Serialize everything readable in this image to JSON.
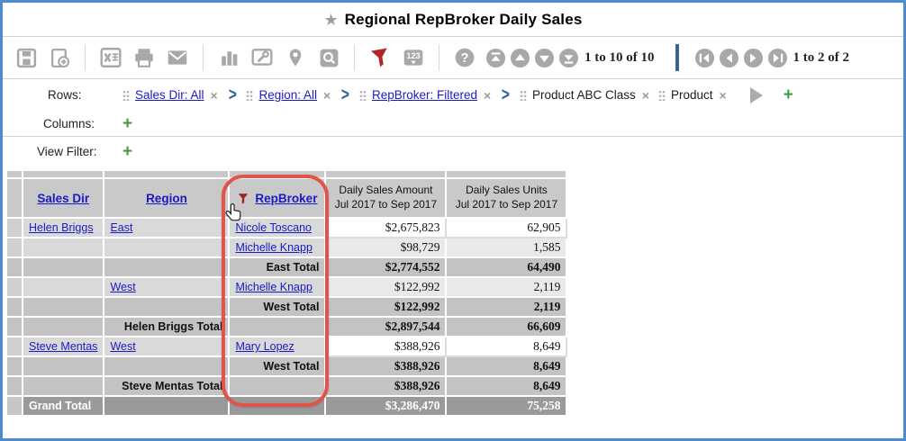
{
  "title": {
    "star_icon": "★",
    "text": "Regional RepBroker Daily Sales"
  },
  "toolbar": {
    "icons": [
      "save",
      "save-as",
      "export-excel",
      "print",
      "email",
      "chart",
      "design",
      "map-pin",
      "preview",
      "filter",
      "number-format",
      "help"
    ],
    "row_pager": {
      "buttons": [
        "scroll-top",
        "scroll-up",
        "scroll-down",
        "scroll-bottom"
      ],
      "label": "1 to 10 of 10"
    },
    "page_pager": {
      "buttons": [
        "first-page",
        "previous-page",
        "next-page",
        "last-page"
      ],
      "label": "1 to 2 of 2"
    }
  },
  "shelves": {
    "rows": {
      "label": "Rows:",
      "chips": [
        {
          "text": "Sales Dir: All",
          "link": true,
          "chevron_after": true
        },
        {
          "text": "Region: All",
          "link": true,
          "chevron_after": true
        },
        {
          "text": "RepBroker: Filtered",
          "link": true,
          "chevron_after": true
        },
        {
          "text": "Product ABC Class",
          "link": false,
          "chevron_after": false
        },
        {
          "text": "Product",
          "link": false,
          "chevron_after": false
        }
      ]
    },
    "columns": {
      "label": "Columns:"
    },
    "view_filter": {
      "label": "View Filter:"
    }
  },
  "table": {
    "headers": [
      {
        "label": "Sales Dir",
        "link": true
      },
      {
        "label": "Region",
        "link": true
      },
      {
        "label": "RepBroker",
        "link": true,
        "filter_icon": true
      },
      {
        "label": "Daily Sales Amount",
        "sub": "Jul 2017 to Sep 2017"
      },
      {
        "label": "Daily Sales Units",
        "sub": "Jul 2017 to Sep 2017"
      }
    ],
    "rows": [
      {
        "type": "data",
        "shade": false,
        "cells": [
          "Helen Briggs",
          "East",
          "Nicole Toscano",
          "$2,675,823",
          "62,905"
        ]
      },
      {
        "type": "data",
        "shade": true,
        "cells": [
          "",
          "",
          "Michelle Knapp",
          "$98,729",
          "1,585"
        ]
      },
      {
        "type": "subtotal",
        "shade": false,
        "cells": [
          "",
          "",
          "East Total",
          "$2,774,552",
          "64,490"
        ]
      },
      {
        "type": "data",
        "shade": true,
        "cells": [
          "",
          "West",
          "Michelle Knapp",
          "$122,992",
          "2,119"
        ]
      },
      {
        "type": "subtotal",
        "shade": false,
        "cells": [
          "",
          "",
          "West Total",
          "$122,992",
          "2,119"
        ]
      },
      {
        "type": "subtotal",
        "shade": false,
        "cells": [
          "",
          "Helen Briggs Total",
          "",
          "$2,897,544",
          "66,609"
        ]
      },
      {
        "type": "data",
        "shade": false,
        "cells": [
          "Steve Mentas",
          "West",
          "Mary Lopez",
          "$388,926",
          "8,649"
        ]
      },
      {
        "type": "subtotal",
        "shade": false,
        "cells": [
          "",
          "",
          "West Total",
          "$388,926",
          "8,649"
        ]
      },
      {
        "type": "subtotal",
        "shade": false,
        "cells": [
          "",
          "Steve Mentas Total",
          "",
          "$388,926",
          "8,649"
        ]
      },
      {
        "type": "grand",
        "shade": false,
        "cells": [
          "Grand Total",
          "",
          "",
          "$3,286,470",
          "75,258"
        ]
      }
    ]
  },
  "annotation": {
    "shape": "rounded-rect",
    "color": "#e2544a",
    "target": "RepBroker column"
  },
  "colors": {
    "frame_blue": "#4d8bd1",
    "link_blue": "#1a1ac6",
    "filter_red": "#b32626",
    "plus_green": "#3f9e3f",
    "pager_bar_blue": "#35648f",
    "icon_gray": "#a8a8a8",
    "header_gray": "#c9c9c9",
    "subtotal_gray": "#c3c3c3",
    "grand_gray": "#9a9a9a"
  }
}
